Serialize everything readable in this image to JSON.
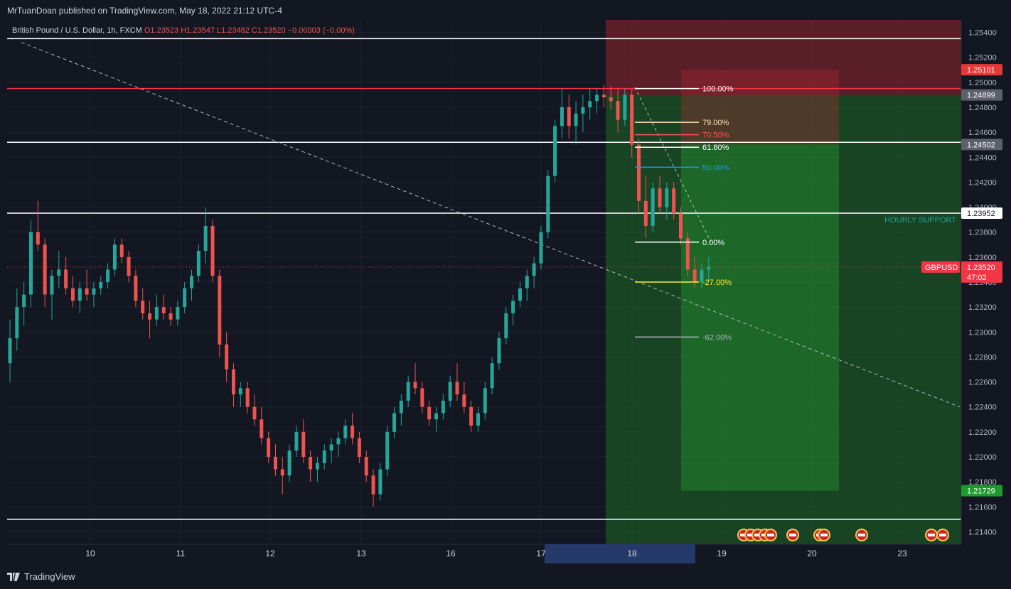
{
  "header": {
    "published_text": "MrTuanDoan published on TradingView.com, May 18, 2022 21:12 UTC-4"
  },
  "footer": {
    "brand": "TradingView"
  },
  "chart_data": {
    "type": "candlestick",
    "symbol_line": {
      "name": "British Pound / U.S. Dollar, 1h, FXCM",
      "open": "O1.23523",
      "high": "H1.23547",
      "low": "L1.23482",
      "close": "C1.23520",
      "change": "−0.00003 (−0.00%)"
    },
    "y_ticks": [
      "1.25400",
      "1.25200",
      "1.25000",
      "1.24800",
      "1.24600",
      "1.24400",
      "1.24200",
      "1.24000",
      "1.23800",
      "1.23600",
      "1.23400",
      "1.23200",
      "1.23000",
      "1.22800",
      "1.22600",
      "1.22400",
      "1.22200",
      "1.22000",
      "1.21800",
      "1.21600",
      "1.21400"
    ],
    "x_ticks": [
      "10",
      "11",
      "12",
      "13",
      "16",
      "17",
      "18",
      "19",
      "20",
      "23"
    ],
    "ylim": [
      1.213,
      1.255
    ],
    "price_badges": [
      {
        "price": 1.25101,
        "label": "1.25101",
        "bg": "#e53935",
        "fg": "#ffffff"
      },
      {
        "price": 1.24899,
        "label": "1.24899",
        "bg": "#5d606b",
        "fg": "#ffffff"
      },
      {
        "price": 1.24502,
        "label": "1.24502",
        "bg": "#5d606b",
        "fg": "#ffffff"
      },
      {
        "price": 1.23952,
        "label": "1.23952",
        "bg": "#ffffff",
        "fg": "#131722"
      },
      {
        "price": 1.21729,
        "label": "1.21729",
        "bg": "#1e9b2d",
        "fg": "#ffffff"
      }
    ],
    "current_price": {
      "price": 1.2352,
      "label": "1.23520",
      "countdown": "47:02",
      "symbol": "GBPUSD"
    },
    "horizontal_lines": [
      {
        "price": 1.2535,
        "color": "#ffffff"
      },
      {
        "price": 1.2495,
        "color": "#f23645"
      },
      {
        "price": 1.2452,
        "color": "#ffffff"
      },
      {
        "price": 1.23952,
        "color": "#ffffff"
      },
      {
        "price": 1.215,
        "color": "#ffffff"
      }
    ],
    "annotation": {
      "text": "HOURLY SUPPORT",
      "price": 1.23952,
      "color": "#1fa59a"
    },
    "fib_levels": [
      {
        "label": "100.00%",
        "price": 1.2495,
        "color": "#ffffff"
      },
      {
        "label": "79.00%",
        "price": 1.2468,
        "color": "#ffe0b2"
      },
      {
        "label": "70.50%",
        "price": 1.2458,
        "color": "#ff5252"
      },
      {
        "label": "61.80%",
        "price": 1.2448,
        "color": "#ffffff"
      },
      {
        "label": "50.00%",
        "price": 1.2432,
        "color": "#2196f3"
      },
      {
        "label": "0.00%",
        "price": 1.2372,
        "color": "#ffffff"
      },
      {
        "label": "-27.00%",
        "price": 1.234,
        "color": "#ffeb3b"
      },
      {
        "label": "-62.00%",
        "price": 1.2296,
        "color": "#b2b5be"
      }
    ],
    "series": [
      {
        "name": "GBPUSD",
        "ohlc": [
          [
            1.2275,
            1.231,
            1.226,
            1.2295
          ],
          [
            1.2295,
            1.2335,
            1.2285,
            1.232
          ],
          [
            1.232,
            1.234,
            1.2305,
            1.233
          ],
          [
            1.233,
            1.239,
            1.232,
            1.238
          ],
          [
            1.238,
            1.2405,
            1.2365,
            1.237
          ],
          [
            1.237,
            1.2375,
            1.232,
            1.233
          ],
          [
            1.233,
            1.235,
            1.231,
            1.2345
          ],
          [
            1.2345,
            1.2365,
            1.2335,
            1.235
          ],
          [
            1.235,
            1.236,
            1.233,
            1.2335
          ],
          [
            1.2335,
            1.2345,
            1.232,
            1.2325
          ],
          [
            1.2325,
            1.234,
            1.2315,
            1.2335
          ],
          [
            1.2335,
            1.235,
            1.2325,
            1.233
          ],
          [
            1.233,
            1.234,
            1.232,
            1.2335
          ],
          [
            1.2335,
            1.2345,
            1.233,
            1.234
          ],
          [
            1.234,
            1.2355,
            1.2335,
            1.235
          ],
          [
            1.235,
            1.2375,
            1.2345,
            1.237
          ],
          [
            1.237,
            1.2375,
            1.2355,
            1.236
          ],
          [
            1.236,
            1.2365,
            1.234,
            1.2345
          ],
          [
            1.2345,
            1.235,
            1.232,
            1.2325
          ],
          [
            1.2325,
            1.2335,
            1.231,
            1.2315
          ],
          [
            1.2315,
            1.2325,
            1.2295,
            1.231
          ],
          [
            1.231,
            1.233,
            1.2305,
            1.232
          ],
          [
            1.232,
            1.233,
            1.231,
            1.2315
          ],
          [
            1.2315,
            1.232,
            1.2305,
            1.231
          ],
          [
            1.231,
            1.2325,
            1.2305,
            1.232
          ],
          [
            1.232,
            1.234,
            1.2315,
            1.2335
          ],
          [
            1.2335,
            1.235,
            1.2325,
            1.2345
          ],
          [
            1.2345,
            1.237,
            1.234,
            1.2365
          ],
          [
            1.2365,
            1.24,
            1.2355,
            1.2385
          ],
          [
            1.2385,
            1.239,
            1.234,
            1.2345
          ],
          [
            1.2345,
            1.235,
            1.228,
            1.229
          ],
          [
            1.229,
            1.23,
            1.226,
            1.227
          ],
          [
            1.227,
            1.2275,
            1.224,
            1.225
          ],
          [
            1.225,
            1.226,
            1.224,
            1.2255
          ],
          [
            1.2255,
            1.226,
            1.2235,
            1.224
          ],
          [
            1.224,
            1.225,
            1.2225,
            1.223
          ],
          [
            1.223,
            1.224,
            1.221,
            1.2215
          ],
          [
            1.2215,
            1.222,
            1.2195,
            1.22
          ],
          [
            1.22,
            1.221,
            1.2185,
            1.219
          ],
          [
            1.219,
            1.22,
            1.217,
            1.2185
          ],
          [
            1.2185,
            1.221,
            1.218,
            1.2205
          ],
          [
            1.2205,
            1.2225,
            1.22,
            1.222
          ],
          [
            1.222,
            1.223,
            1.2195,
            1.22
          ],
          [
            1.22,
            1.2205,
            1.218,
            1.219
          ],
          [
            1.219,
            1.22,
            1.218,
            1.2195
          ],
          [
            1.2195,
            1.221,
            1.219,
            1.2205
          ],
          [
            1.2205,
            1.2215,
            1.2195,
            1.221
          ],
          [
            1.221,
            1.222,
            1.22,
            1.2215
          ],
          [
            1.2215,
            1.223,
            1.221,
            1.2225
          ],
          [
            1.2225,
            1.2235,
            1.221,
            1.2215
          ],
          [
            1.2215,
            1.222,
            1.2195,
            1.22
          ],
          [
            1.22,
            1.2205,
            1.218,
            1.2185
          ],
          [
            1.2185,
            1.219,
            1.216,
            1.217
          ],
          [
            1.217,
            1.2195,
            1.2165,
            1.219
          ],
          [
            1.219,
            1.2225,
            1.2185,
            1.222
          ],
          [
            1.222,
            1.224,
            1.2215,
            1.2235
          ],
          [
            1.2235,
            1.225,
            1.2225,
            1.2245
          ],
          [
            1.2245,
            1.2265,
            1.224,
            1.226
          ],
          [
            1.226,
            1.2275,
            1.225,
            1.2255
          ],
          [
            1.2255,
            1.226,
            1.2235,
            1.224
          ],
          [
            1.224,
            1.2245,
            1.2225,
            1.223
          ],
          [
            1.223,
            1.224,
            1.222,
            1.2235
          ],
          [
            1.2235,
            1.225,
            1.223,
            1.2245
          ],
          [
            1.2245,
            1.2265,
            1.224,
            1.226
          ],
          [
            1.226,
            1.2275,
            1.2245,
            1.225
          ],
          [
            1.225,
            1.226,
            1.2235,
            1.224
          ],
          [
            1.224,
            1.2245,
            1.222,
            1.2225
          ],
          [
            1.2225,
            1.224,
            1.222,
            1.2235
          ],
          [
            1.2235,
            1.226,
            1.223,
            1.2255
          ],
          [
            1.2255,
            1.228,
            1.225,
            1.2275
          ],
          [
            1.2275,
            1.23,
            1.227,
            1.2295
          ],
          [
            1.2295,
            1.232,
            1.229,
            1.2315
          ],
          [
            1.2315,
            1.233,
            1.2305,
            1.2325
          ],
          [
            1.2325,
            1.234,
            1.232,
            1.2335
          ],
          [
            1.2335,
            1.235,
            1.2325,
            1.2345
          ],
          [
            1.2345,
            1.236,
            1.2335,
            1.2355
          ],
          [
            1.2355,
            1.2385,
            1.235,
            1.238
          ],
          [
            1.238,
            1.243,
            1.2375,
            1.2425
          ],
          [
            1.2425,
            1.247,
            1.242,
            1.2465
          ],
          [
            1.2465,
            1.2495,
            1.2455,
            1.248
          ],
          [
            1.248,
            1.249,
            1.2455,
            1.2465
          ],
          [
            1.2465,
            1.2485,
            1.245,
            1.2475
          ],
          [
            1.2475,
            1.249,
            1.246,
            1.248
          ],
          [
            1.248,
            1.2495,
            1.247,
            1.2485
          ],
          [
            1.2485,
            1.2495,
            1.2475,
            1.249
          ],
          [
            1.249,
            1.2498,
            1.248,
            1.2488
          ],
          [
            1.2488,
            1.2497,
            1.2478,
            1.2485
          ],
          [
            1.2485,
            1.2495,
            1.246,
            1.247
          ],
          [
            1.247,
            1.2495,
            1.2465,
            1.249
          ],
          [
            1.249,
            1.2495,
            1.244,
            1.245
          ],
          [
            1.245,
            1.2455,
            1.2395,
            1.2405
          ],
          [
            1.2405,
            1.2425,
            1.2375,
            1.2385
          ],
          [
            1.2385,
            1.242,
            1.238,
            1.2415
          ],
          [
            1.2415,
            1.2425,
            1.2395,
            1.24
          ],
          [
            1.24,
            1.242,
            1.239,
            1.2415
          ],
          [
            1.2415,
            1.242,
            1.239,
            1.2395
          ],
          [
            1.2395,
            1.24,
            1.237,
            1.2375
          ],
          [
            1.2375,
            1.238,
            1.2345,
            1.235
          ],
          [
            1.235,
            1.236,
            1.2335,
            1.234
          ],
          [
            1.234,
            1.2355,
            1.2335,
            1.235
          ],
          [
            1.235,
            1.236,
            1.234,
            1.2352
          ]
        ]
      }
    ]
  }
}
